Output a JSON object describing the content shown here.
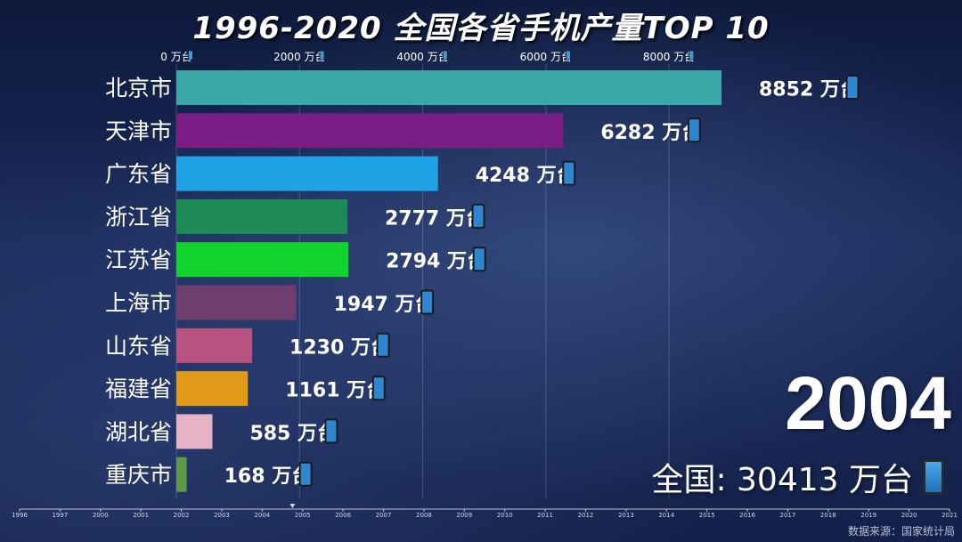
{
  "title": "1996-2020 全国各省手机产量TOP 10",
  "current_year": "2004",
  "total_label": "全国: 30413 万台",
  "source": "数据来源：国家统计局",
  "unit": "万台",
  "chart_data": {
    "type": "bar",
    "orientation": "horizontal",
    "title": "1996-2020 全国各省手机产量TOP 10",
    "categories": [
      "北京市",
      "天津市",
      "广东省",
      "浙江省",
      "江苏省",
      "上海市",
      "山东省",
      "福建省",
      "湖北省",
      "重庆市"
    ],
    "values": [
      8852,
      6282,
      4248,
      2777,
      2794,
      1947,
      1230,
      1161,
      585,
      168
    ],
    "value_labels": [
      "8852 万台",
      "6282 万台",
      "4248 万台",
      "2777 万台",
      "2794 万台",
      "1947 万台",
      "1230 万台",
      "1161 万台",
      "585 万台",
      "168 万台"
    ],
    "colors": [
      "#3aa8a8",
      "#7a1e86",
      "#1fa3e6",
      "#1e8a55",
      "#12d22c",
      "#6e3e6e",
      "#b8527f",
      "#e09a18",
      "#e6b3c4",
      "#5a9a4a"
    ],
    "xlim": [
      0,
      9000
    ],
    "x_ticks": [
      0,
      2000,
      4000,
      6000,
      8000
    ],
    "x_tick_labels": [
      "0 万台",
      "2000 万台",
      "4000 万台",
      "6000 万台",
      "8000 万台"
    ],
    "timeline": {
      "years": [
        "1996",
        "1997",
        "2000",
        "2001",
        "2002",
        "2003",
        "2004",
        "2005",
        "2006",
        "2007",
        "2008",
        "2009",
        "2010",
        "2011",
        "2012",
        "2013",
        "2014",
        "2015",
        "2016",
        "2017",
        "2018",
        "2019",
        "2020",
        "2021"
      ],
      "current": "2004"
    }
  }
}
